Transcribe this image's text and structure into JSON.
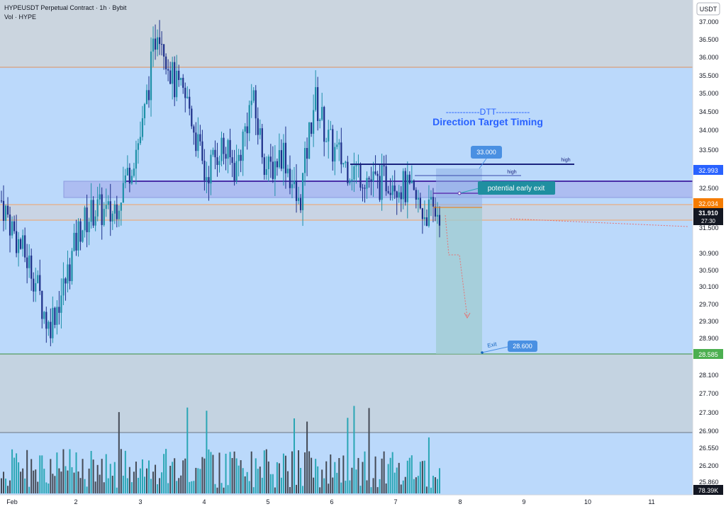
{
  "header": {
    "title": "HYPEUSDT Perpetual Contract · 1h · Bybit",
    "volume_label": "Vol · HYPE"
  },
  "price_axis": {
    "currency": "USDT",
    "ticks": [
      "37.000",
      "36.500",
      "36.000",
      "35.500",
      "35.000",
      "34.500",
      "34.000",
      "33.500",
      "32.500",
      "31.500",
      "30.900",
      "30.500",
      "30.100",
      "29.700",
      "29.300",
      "28.900",
      "28.100",
      "27.700",
      "27.300",
      "26.900",
      "26.550",
      "26.200",
      "25.860"
    ],
    "badges": {
      "level_high": "32.993",
      "prev_close": "32.034",
      "last_price": "31.910",
      "countdown": "27:30",
      "exit_level": "28.585",
      "volume": "78.39K"
    }
  },
  "time_axis": {
    "labels": [
      "Feb",
      "2",
      "3",
      "4",
      "5",
      "6",
      "7",
      "8",
      "9",
      "10",
      "11"
    ]
  },
  "annotations": {
    "dtt_line": "------------DTT------------",
    "dtt_subtitle": "Direction Target Timing",
    "target_33": "33.000",
    "high_label_1": "high",
    "high_label_2": "high",
    "early_exit": "potential early exit",
    "exit_word": "Exit",
    "exit_price": "28.600"
  },
  "colors": {
    "chart_bg": "#bbd9fb",
    "upper_zone": "#cbd5df",
    "lower_zone": "#c4d3e1",
    "bull": "#1e90a8",
    "bear": "#1d2f8a",
    "volume_bar": "#444a55",
    "volume_bar_alt": "#2aa6b5",
    "accent_blue": "#2962ff",
    "label_blue": "#4a90e2",
    "teal_label": "#1f8fa0",
    "orange": "#f57c00",
    "green": "#4caf50",
    "navy_line": "#1a237e",
    "purple_line": "#5e35b1"
  },
  "chart_data": {
    "type": "candlestick",
    "symbol": "HYPEUSDT",
    "interval": "1h",
    "ylim": [
      28.3,
      37.3
    ],
    "x": [
      "Feb",
      "2",
      "3",
      "4",
      "5",
      "6",
      "7",
      "8",
      "9",
      "10",
      "11"
    ],
    "close_path": [
      32.2,
      31.2,
      30.4,
      29.0,
      30.0,
      31.5,
      32.0,
      31.8,
      32.8,
      34.0,
      36.8,
      35.2,
      34.6,
      32.8,
      33.6,
      33.0,
      34.8,
      32.9,
      33.5,
      32.0,
      34.8,
      33.6,
      33.1,
      32.9,
      32.6,
      32.8,
      32.4,
      31.9,
      31.91
    ],
    "levels": {
      "target": 33.0,
      "high_line": 32.993,
      "early_exit_zone": [
        32.45,
        32.85
      ],
      "support_band": [
        31.8,
        32.034
      ],
      "exit": 28.6,
      "exit_line": 28.585,
      "last_price": 31.91
    },
    "volume_last": "78.39K"
  }
}
